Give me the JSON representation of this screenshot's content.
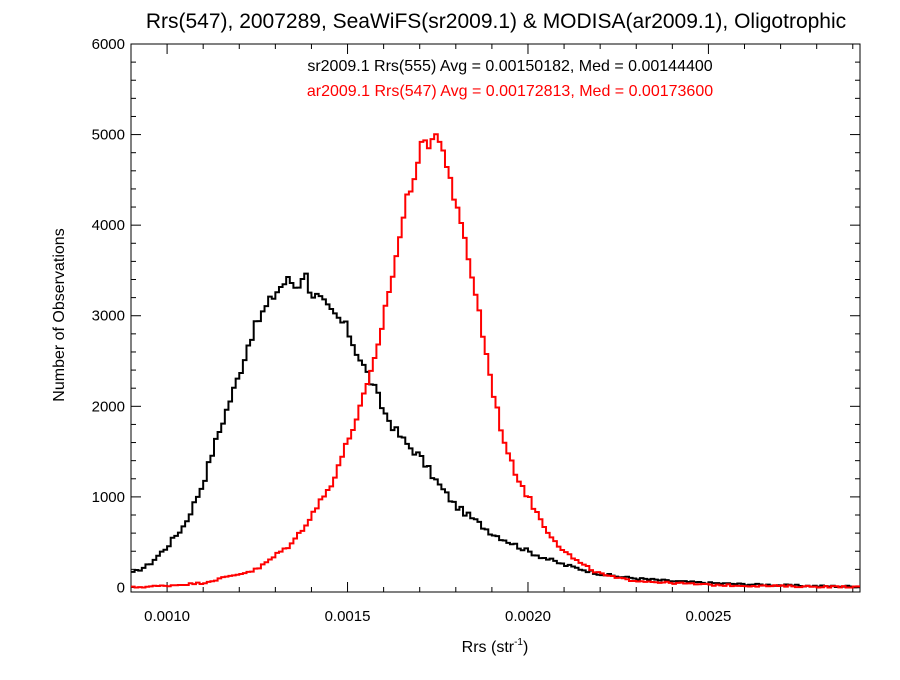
{
  "chart_data": {
    "type": "line",
    "title": "Rrs(547), 2007289, SeaWiFS(sr2009.1) & MODISA(ar2009.1), Oligotrophic",
    "xlabel": "Rrs (str",
    "xlabel_sup": "-1",
    "xlabel_end": ")",
    "ylabel": "Number of Observations",
    "xlim": [
      0.0009,
      0.00292
    ],
    "ylim": [
      -50,
      6000
    ],
    "xticks": [
      0.001,
      0.0015,
      0.002,
      0.0025
    ],
    "xtick_labels": [
      "0.0010",
      "0.0015",
      "0.0020",
      "0.0025"
    ],
    "yticks": [
      0,
      1000,
      2000,
      3000,
      4000,
      5000,
      6000
    ],
    "ytick_labels": [
      "0",
      "1000",
      "2000",
      "3000",
      "4000",
      "5000",
      "6000"
    ],
    "grid": false,
    "legend_position": "top-center",
    "annotations": [
      "sr2009.1 Rrs(555) Avg = 0.00150182, Med = 0.00144400",
      "ar2009.1 Rrs(547) Avg = 0.00172813, Med = 0.00173600"
    ],
    "series": [
      {
        "color": "#000000",
        "style": "step",
        "x": [
          0.0009,
          0.00095,
          0.001,
          0.00105,
          0.0011,
          0.00113,
          0.00116,
          0.0012,
          0.00123,
          0.00126,
          0.0013,
          0.00132,
          0.00134,
          0.00136,
          0.00138,
          0.0014,
          0.00142,
          0.00145,
          0.00148,
          0.0015,
          0.00152,
          0.00155,
          0.00158,
          0.0016,
          0.00163,
          0.00166,
          0.0017,
          0.00175,
          0.0018,
          0.00185,
          0.0019,
          0.00195,
          0.002,
          0.00205,
          0.0021,
          0.00215,
          0.0022,
          0.00225,
          0.0023,
          0.0024,
          0.0025,
          0.0026,
          0.0027,
          0.0028,
          0.00292
        ],
        "y": [
          150,
          250,
          450,
          700,
          1150,
          1550,
          1900,
          2350,
          2750,
          3000,
          3250,
          3350,
          3400,
          3300,
          3500,
          3250,
          3200,
          3050,
          2950,
          2850,
          2650,
          2400,
          2150,
          1950,
          1750,
          1600,
          1450,
          1150,
          900,
          750,
          600,
          500,
          400,
          320,
          250,
          200,
          150,
          120,
          100,
          70,
          50,
          35,
          25,
          15,
          10
        ]
      },
      {
        "color": "#ff0000",
        "style": "step",
        "x": [
          0.0009,
          0.001,
          0.0011,
          0.0012,
          0.00125,
          0.0013,
          0.00135,
          0.0014,
          0.00145,
          0.0015,
          0.00155,
          0.00158,
          0.0016,
          0.00163,
          0.00166,
          0.00168,
          0.0017,
          0.00172,
          0.00173,
          0.00174,
          0.00176,
          0.00178,
          0.0018,
          0.00183,
          0.00186,
          0.00189,
          0.00192,
          0.00195,
          0.002,
          0.00205,
          0.0021,
          0.00215,
          0.0022,
          0.00225,
          0.0023,
          0.0024,
          0.0025,
          0.0026,
          0.0027,
          0.0028,
          0.00292
        ],
        "y": [
          0,
          20,
          50,
          150,
          200,
          350,
          500,
          800,
          1100,
          1600,
          2150,
          2550,
          3000,
          3550,
          4200,
          4500,
          4800,
          4950,
          4900,
          5050,
          4850,
          4650,
          4200,
          3750,
          3150,
          2450,
          1850,
          1400,
          1000,
          650,
          400,
          250,
          150,
          100,
          75,
          50,
          30,
          20,
          15,
          10,
          5
        ]
      }
    ]
  }
}
